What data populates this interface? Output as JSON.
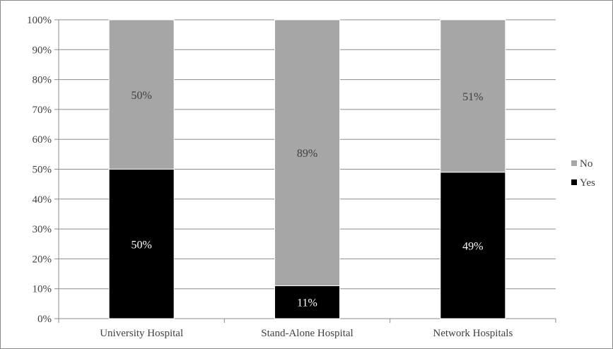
{
  "chart_data": {
    "type": "bar",
    "stacked": true,
    "title": "",
    "xlabel": "",
    "ylabel": "",
    "ylim": [
      0,
      100
    ],
    "y_ticks": [
      "0%",
      "10%",
      "20%",
      "30%",
      "40%",
      "50%",
      "60%",
      "70%",
      "80%",
      "90%",
      "100%"
    ],
    "grid": true,
    "legend_position": "right",
    "categories": [
      "University Hospital",
      "Stand-Alone Hospital",
      "Network Hospitals"
    ],
    "series": [
      {
        "name": "Yes",
        "color": "#000000",
        "label_color": "#ffffff",
        "values": [
          50,
          11,
          49
        ],
        "labels": [
          "50%",
          "11%",
          "49%"
        ]
      },
      {
        "name": "No",
        "color": "#a6a6a6",
        "label_color": "#404040",
        "values": [
          50,
          89,
          51
        ],
        "labels": [
          "50%",
          "89%",
          "51%"
        ]
      }
    ],
    "legend": [
      {
        "name": "No",
        "color": "#a6a6a6"
      },
      {
        "name": "Yes",
        "color": "#000000"
      }
    ]
  }
}
